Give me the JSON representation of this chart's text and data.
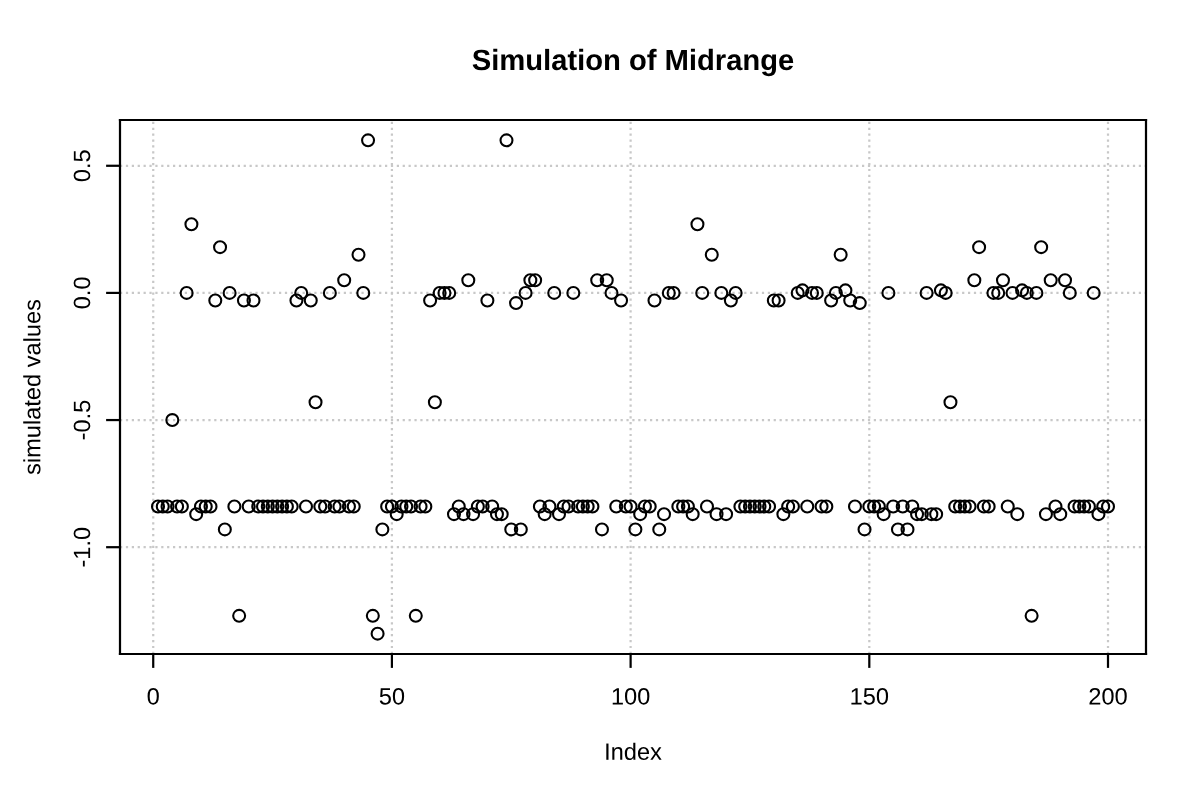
{
  "chart_data": {
    "type": "scatter",
    "title": "Simulation of Midrange",
    "xlabel": "Index",
    "ylabel": "simulated values",
    "x": [
      1,
      2,
      3,
      4,
      5,
      6,
      7,
      8,
      9,
      10,
      11,
      12,
      13,
      14,
      15,
      16,
      17,
      18,
      19,
      20,
      21,
      22,
      23,
      24,
      25,
      26,
      27,
      28,
      29,
      30,
      31,
      32,
      33,
      34,
      35,
      36,
      37,
      38,
      39,
      40,
      41,
      42,
      43,
      44,
      45,
      46,
      47,
      48,
      49,
      50,
      51,
      52,
      53,
      54,
      55,
      56,
      57,
      58,
      59,
      60,
      61,
      62,
      63,
      64,
      65,
      66,
      67,
      68,
      69,
      70,
      71,
      72,
      73,
      74,
      75,
      76,
      77,
      78,
      79,
      80,
      81,
      82,
      83,
      84,
      85,
      86,
      87,
      88,
      89,
      90,
      91,
      92,
      93,
      94,
      95,
      96,
      97,
      98,
      99,
      100,
      101,
      102,
      103,
      104,
      105,
      106,
      107,
      108,
      109,
      110,
      111,
      112,
      113,
      114,
      115,
      116,
      117,
      118,
      119,
      120,
      121,
      122,
      123,
      124,
      125,
      126,
      127,
      128,
      129,
      130,
      131,
      132,
      133,
      134,
      135,
      136,
      137,
      138,
      139,
      140,
      141,
      142,
      143,
      144,
      145,
      146,
      147,
      148,
      149,
      150,
      151,
      152,
      153,
      154,
      155,
      156,
      157,
      158,
      159,
      160,
      161,
      162,
      163,
      164,
      165,
      166,
      167,
      168,
      169,
      170,
      171,
      172,
      173,
      174,
      175,
      176,
      177,
      178,
      179,
      180,
      181,
      182,
      183,
      184,
      185,
      186,
      187,
      188,
      189,
      190,
      191,
      192,
      193,
      194,
      195,
      196,
      197,
      198,
      199,
      200
    ],
    "series": [
      {
        "color": "#000000",
        "values": [
          -0.84,
          -0.84,
          -0.84,
          -0.5,
          -0.84,
          -0.84,
          0,
          0.27,
          -0.87,
          -0.84,
          -0.84,
          -0.84,
          -0.03,
          0.18,
          -0.93,
          0,
          -0.84,
          -1.27,
          -0.03,
          -0.84,
          -0.03,
          -0.84,
          -0.84,
          -0.84,
          -0.84,
          -0.84,
          -0.84,
          -0.84,
          -0.84,
          -0.03,
          0,
          -0.84,
          -0.03,
          -0.43,
          -0.84,
          -0.84,
          0,
          -0.84,
          -0.84,
          0.05,
          -0.84,
          -0.84,
          0.15,
          0,
          0.6,
          -1.27,
          -1.34,
          -0.93,
          -0.84,
          -0.84,
          -0.87,
          -0.84,
          -0.84,
          -0.84,
          -1.27,
          -0.84,
          -0.84,
          -0.03,
          -0.43,
          0,
          0,
          0,
          -0.87,
          -0.84,
          -0.87,
          0.05,
          -0.87,
          -0.84,
          -0.84,
          -0.03,
          -0.84,
          -0.87,
          -0.87,
          0.6,
          -0.93,
          -0.04,
          -0.93,
          0,
          0.05,
          0.05,
          -0.84,
          -0.87,
          -0.84,
          0,
          -0.87,
          -0.84,
          -0.84,
          0,
          -0.84,
          -0.84,
          -0.84,
          -0.84,
          0.05,
          -0.93,
          0.05,
          0,
          -0.84,
          -0.03,
          -0.84,
          -0.84,
          -0.93,
          -0.87,
          -0.84,
          -0.84,
          -0.03,
          -0.93,
          -0.87,
          0,
          0,
          -0.84,
          -0.84,
          -0.84,
          -0.87,
          0.27,
          0,
          -0.84,
          0.15,
          -0.87,
          0,
          -0.87,
          -0.03,
          0,
          -0.84,
          -0.84,
          -0.84,
          -0.84,
          -0.84,
          -0.84,
          -0.84,
          -0.03,
          -0.03,
          -0.87,
          -0.84,
          -0.84,
          0,
          0.01,
          -0.84,
          0,
          0,
          -0.84,
          -0.84,
          -0.03,
          0,
          0.15,
          0.01,
          -0.03,
          -0.84,
          -0.04,
          -0.93,
          -0.84,
          -0.84,
          -0.84,
          -0.87,
          0,
          -0.84,
          -0.93,
          -0.84,
          -0.93,
          -0.84,
          -0.87,
          -0.87,
          0,
          -0.87,
          -0.87,
          0.01,
          0,
          -0.43,
          -0.84,
          -0.84,
          -0.84,
          -0.84,
          0.05,
          0.18,
          -0.84,
          -0.84,
          0,
          0,
          0.05,
          -0.84,
          0,
          -0.87,
          0.01,
          0,
          -1.27,
          0,
          0.18,
          -0.87,
          0.05,
          -0.84,
          -0.87,
          0.05,
          0,
          -0.84,
          -0.84,
          -0.84,
          -0.84,
          0,
          -0.87,
          -0.84,
          -0.84
        ]
      }
    ],
    "xlim": [
      -6.96,
      207.96
    ],
    "ylim": [
      -1.42,
      0.68
    ],
    "xticks": [
      0,
      50,
      100,
      150,
      200
    ],
    "yticks": [
      {
        "value": -1.0,
        "label": "-1.0"
      },
      {
        "value": -0.5,
        "label": "-0.5"
      },
      {
        "value": 0.0,
        "label": "0.0"
      },
      {
        "value": 0.5,
        "label": "0.5"
      }
    ],
    "grid": true,
    "marker": "circle"
  }
}
